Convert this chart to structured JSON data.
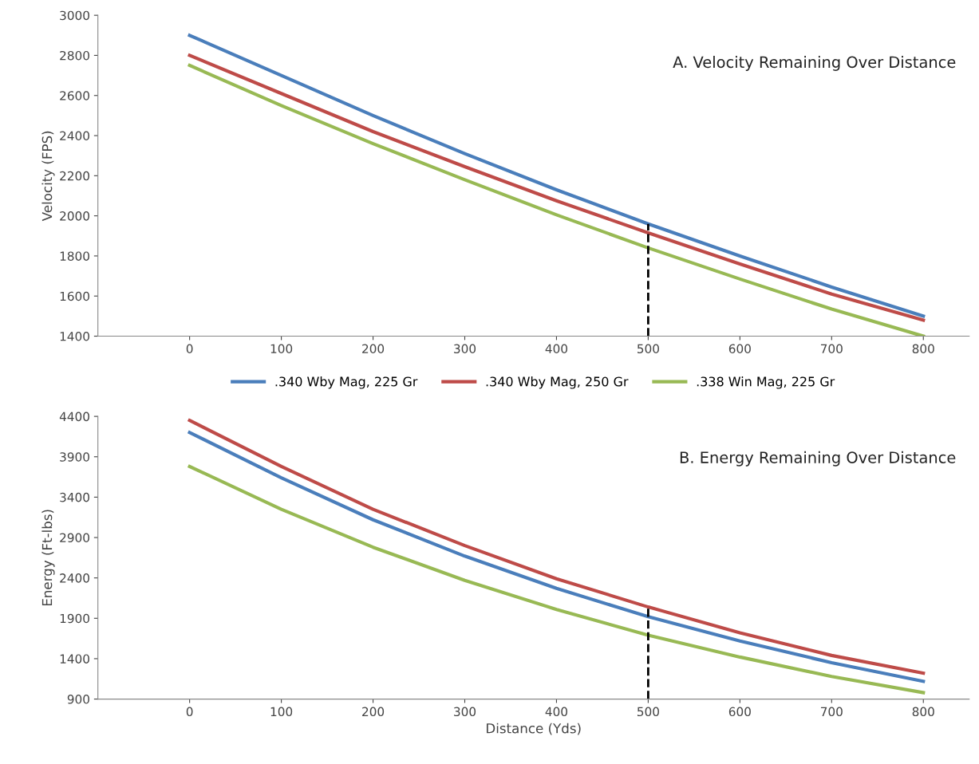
{
  "chart_data": [
    {
      "type": "line",
      "title": "A. Velocity Remaining Over Distance",
      "ylabel": "Velocity (FPS)",
      "x": [
        0,
        100,
        200,
        300,
        400,
        500,
        600,
        700,
        800
      ],
      "series": [
        {
          "name": ".340 Wby Mag, 225 Gr",
          "color": "#4a7ebb",
          "values": [
            2900,
            2700,
            2500,
            2310,
            2130,
            1960,
            1800,
            1645,
            1500
          ]
        },
        {
          "name": ".340 Wby Mag, 250 Gr",
          "color": "#be4b48",
          "values": [
            2800,
            2610,
            2420,
            2245,
            2075,
            1915,
            1760,
            1610,
            1480
          ]
        },
        {
          "name": ".338 Win Mag, 225 Gr",
          "color": "#98b954",
          "values": [
            2750,
            2550,
            2360,
            2180,
            2005,
            1840,
            1685,
            1535,
            1400
          ]
        }
      ],
      "xlim": [
        -100,
        850
      ],
      "xticks": [
        0,
        100,
        200,
        300,
        400,
        500,
        600,
        700,
        800
      ],
      "ylim": [
        1400,
        3000
      ],
      "yticks": [
        1400,
        1600,
        1800,
        2000,
        2200,
        2400,
        2600,
        2800,
        3000
      ],
      "ref_lines": [
        {
          "axis": "x",
          "value": 500,
          "color": "#000000",
          "line_style": "dashed"
        }
      ],
      "legend": "bottom",
      "grid": false,
      "marker": "none",
      "line_style": "solid"
    },
    {
      "type": "line",
      "title": "B. Energy Remaining Over Distance",
      "ylabel": "Energy (Ft-lbs)",
      "xlabel": "Distance (Yds)",
      "x": [
        0,
        100,
        200,
        300,
        400,
        500,
        600,
        700,
        800
      ],
      "series": [
        {
          "color": "#4a7ebb",
          "values": [
            4200,
            3640,
            3120,
            2670,
            2270,
            1920,
            1620,
            1350,
            1120
          ]
        },
        {
          "color": "#be4b48",
          "values": [
            4350,
            3780,
            3250,
            2800,
            2390,
            2040,
            1720,
            1440,
            1220
          ]
        },
        {
          "color": "#98b954",
          "values": [
            3780,
            3250,
            2780,
            2370,
            2010,
            1690,
            1420,
            1180,
            980
          ]
        }
      ],
      "xlim": [
        -100,
        850
      ],
      "xticks": [
        0,
        100,
        200,
        300,
        400,
        500,
        600,
        700,
        800
      ],
      "ylim": [
        900,
        4400
      ],
      "yticks": [
        900,
        1400,
        1900,
        2400,
        2900,
        3400,
        3900,
        4400
      ],
      "ref_lines": [
        {
          "axis": "x",
          "value": 500,
          "color": "#000000",
          "line_style": "dashed"
        }
      ],
      "legend": false,
      "grid": false,
      "marker": "none",
      "line_style": "solid"
    }
  ]
}
